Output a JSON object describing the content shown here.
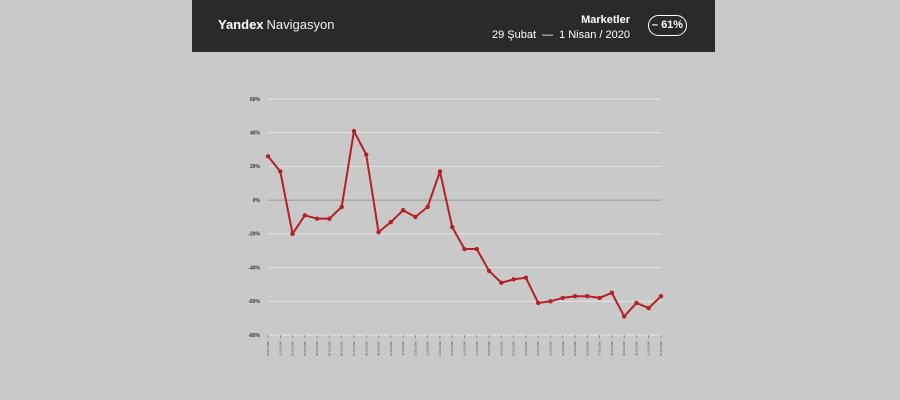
{
  "header": {
    "brand_bold": "Yandex",
    "brand_regular": "Navigasyon",
    "category": "Marketler",
    "date_start": "29 Şubat",
    "date_separator": "—",
    "date_end": "1 Nisan / 2020",
    "change_badge": "– 61%"
  },
  "colors": {
    "background": "#c9c9c9",
    "header_bg": "#2a2a2a",
    "line": "#b52025",
    "grid": "#eeeeee",
    "zero_line": "#8a8a8a"
  },
  "chart_data": {
    "type": "line",
    "title": "",
    "xlabel": "",
    "ylabel": "",
    "ylim": [
      -80,
      60
    ],
    "yticks": [
      -80,
      -60,
      -40,
      -20,
      0,
      20,
      40,
      60
    ],
    "ytick_labels": [
      "-80%",
      "-60%",
      "-40%",
      "-20%",
      "0%",
      "20%",
      "40%",
      "60%"
    ],
    "grid": true,
    "categories": [
      "29.02.2020",
      "01.03.2020",
      "02.03.2020",
      "03.03.2020",
      "04.03.2020",
      "05.03.2020",
      "06.03.2020",
      "07.03.2020",
      "08.03.2020",
      "09.03.2020",
      "10.03.2020",
      "11.03.2020",
      "12.03.2020",
      "13.03.2020",
      "14.03.2020",
      "15.03.2020",
      "16.03.2020",
      "17.03.2020",
      "18.03.2020",
      "19.03.2020",
      "20.03.2020",
      "21.03.2020",
      "22.03.2020",
      "23.03.2020",
      "24.03.2020",
      "25.03.2020",
      "26.03.2020",
      "27.03.2020",
      "28.03.2020",
      "29.03.2020",
      "30.03.2020",
      "31.03.2020",
      "01.04.2020"
    ],
    "series": [
      {
        "values": [
          26,
          17,
          -20,
          -9,
          -11,
          -11,
          -4,
          41,
          27,
          -19,
          -13,
          -6,
          -10,
          -4,
          17,
          -16,
          -29,
          -29,
          -42,
          -49,
          -47,
          -46,
          -61,
          -60,
          -58,
          -57,
          -57,
          -58,
          -55,
          -69,
          -61,
          -64,
          -57
        ]
      }
    ]
  }
}
